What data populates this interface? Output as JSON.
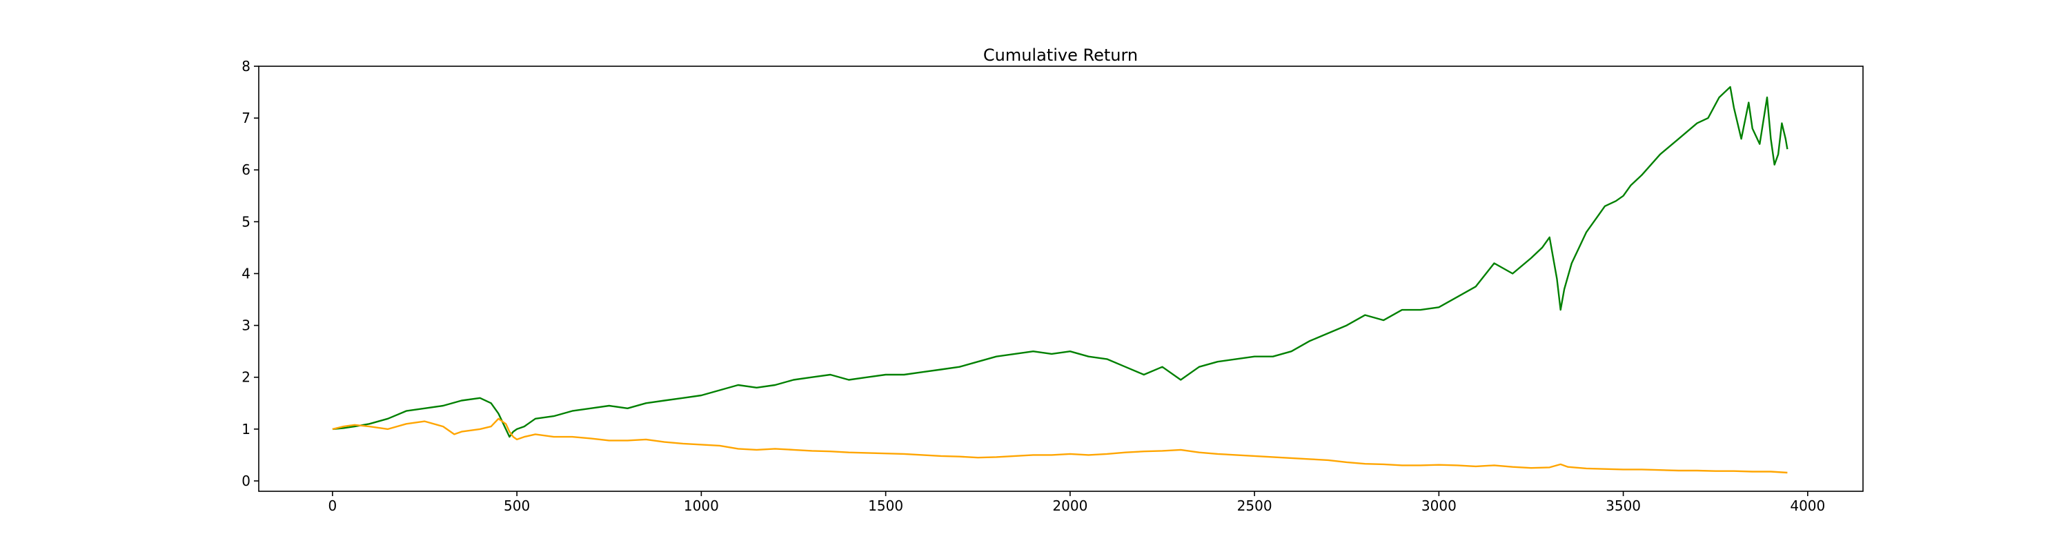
{
  "chart_data": {
    "type": "line",
    "title": "Cumulative Return",
    "xlabel": "",
    "ylabel": "",
    "xlim": [
      -200,
      4150
    ],
    "ylim": [
      -0.2,
      8.0
    ],
    "x_ticks": [
      0,
      500,
      1000,
      1500,
      2000,
      2500,
      3000,
      3500,
      4000
    ],
    "y_ticks": [
      0,
      1,
      2,
      3,
      4,
      5,
      6,
      7,
      8
    ],
    "grid": false,
    "legend": "none",
    "series": [
      {
        "color": "#008000",
        "x": [
          0,
          30,
          60,
          100,
          150,
          200,
          250,
          300,
          350,
          400,
          430,
          450,
          470,
          480,
          490,
          500,
          520,
          550,
          600,
          650,
          700,
          750,
          800,
          850,
          900,
          950,
          1000,
          1050,
          1100,
          1150,
          1200,
          1250,
          1300,
          1350,
          1400,
          1450,
          1500,
          1550,
          1600,
          1650,
          1700,
          1750,
          1800,
          1850,
          1900,
          1950,
          2000,
          2050,
          2100,
          2150,
          2200,
          2250,
          2300,
          2350,
          2400,
          2450,
          2500,
          2550,
          2600,
          2650,
          2700,
          2750,
          2800,
          2850,
          2900,
          2950,
          3000,
          3050,
          3100,
          3150,
          3200,
          3250,
          3280,
          3300,
          3320,
          3330,
          3340,
          3360,
          3400,
          3430,
          3450,
          3480,
          3500,
          3520,
          3550,
          3600,
          3650,
          3700,
          3730,
          3760,
          3790,
          3800,
          3820,
          3840,
          3850,
          3870,
          3890,
          3900,
          3910,
          3920,
          3930,
          3940,
          3945
        ],
        "y": [
          1.0,
          1.02,
          1.05,
          1.1,
          1.2,
          1.35,
          1.4,
          1.45,
          1.55,
          1.6,
          1.5,
          1.3,
          1.0,
          0.85,
          0.95,
          1.0,
          1.05,
          1.2,
          1.25,
          1.35,
          1.4,
          1.45,
          1.4,
          1.5,
          1.55,
          1.6,
          1.65,
          1.75,
          1.85,
          1.8,
          1.85,
          1.95,
          2.0,
          2.05,
          1.95,
          2.0,
          2.05,
          2.05,
          2.1,
          2.15,
          2.2,
          2.3,
          2.4,
          2.45,
          2.5,
          2.45,
          2.5,
          2.4,
          2.35,
          2.2,
          2.05,
          2.2,
          1.95,
          2.2,
          2.3,
          2.35,
          2.4,
          2.4,
          2.5,
          2.7,
          2.85,
          3.0,
          3.2,
          3.1,
          3.3,
          3.3,
          3.35,
          3.55,
          3.75,
          4.2,
          4.0,
          4.3,
          4.5,
          4.7,
          3.9,
          3.3,
          3.7,
          4.2,
          4.8,
          5.1,
          5.3,
          5.4,
          5.5,
          5.7,
          5.9,
          6.3,
          6.6,
          6.9,
          7.0,
          7.4,
          7.6,
          7.2,
          6.6,
          7.3,
          6.8,
          6.5,
          7.4,
          6.6,
          6.1,
          6.3,
          6.9,
          6.6,
          6.4
        ]
      },
      {
        "color": "#ffa500",
        "x": [
          0,
          30,
          60,
          100,
          150,
          200,
          250,
          300,
          330,
          350,
          400,
          430,
          450,
          470,
          480,
          490,
          500,
          520,
          550,
          600,
          650,
          700,
          750,
          800,
          850,
          900,
          950,
          1000,
          1050,
          1100,
          1150,
          1200,
          1250,
          1300,
          1350,
          1400,
          1450,
          1500,
          1550,
          1600,
          1650,
          1700,
          1750,
          1800,
          1850,
          1900,
          1950,
          2000,
          2050,
          2100,
          2150,
          2200,
          2250,
          2300,
          2350,
          2400,
          2450,
          2500,
          2550,
          2600,
          2650,
          2700,
          2750,
          2800,
          2850,
          2900,
          2950,
          3000,
          3050,
          3100,
          3150,
          3200,
          3250,
          3300,
          3330,
          3350,
          3400,
          3450,
          3500,
          3550,
          3600,
          3650,
          3700,
          3750,
          3800,
          3850,
          3900,
          3945
        ],
        "y": [
          1.0,
          1.05,
          1.08,
          1.05,
          1.0,
          1.1,
          1.15,
          1.05,
          0.9,
          0.95,
          1.0,
          1.05,
          1.2,
          1.1,
          0.95,
          0.85,
          0.8,
          0.85,
          0.9,
          0.85,
          0.85,
          0.82,
          0.78,
          0.78,
          0.8,
          0.75,
          0.72,
          0.7,
          0.68,
          0.62,
          0.6,
          0.62,
          0.6,
          0.58,
          0.57,
          0.55,
          0.54,
          0.53,
          0.52,
          0.5,
          0.48,
          0.47,
          0.45,
          0.46,
          0.48,
          0.5,
          0.5,
          0.52,
          0.5,
          0.52,
          0.55,
          0.57,
          0.58,
          0.6,
          0.55,
          0.52,
          0.5,
          0.48,
          0.46,
          0.44,
          0.42,
          0.4,
          0.36,
          0.33,
          0.32,
          0.3,
          0.3,
          0.31,
          0.3,
          0.28,
          0.3,
          0.27,
          0.25,
          0.26,
          0.32,
          0.27,
          0.24,
          0.23,
          0.22,
          0.22,
          0.21,
          0.2,
          0.2,
          0.19,
          0.19,
          0.18,
          0.18,
          0.16
        ]
      }
    ]
  }
}
